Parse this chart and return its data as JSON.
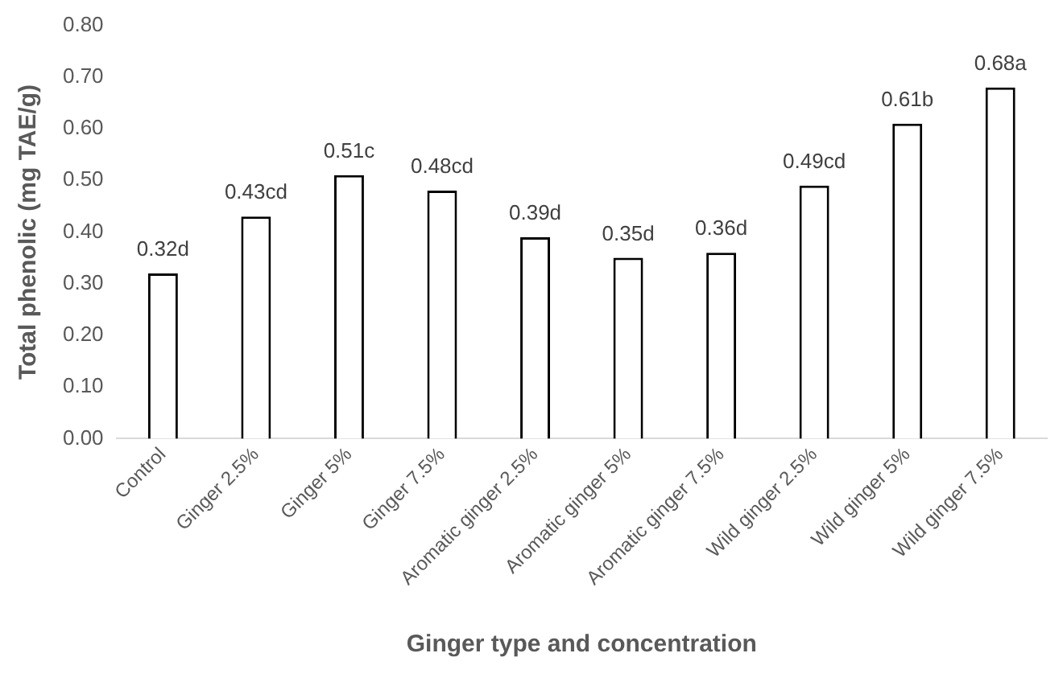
{
  "chart_data": {
    "type": "bar",
    "xlabel": "Ginger type and concentration",
    "ylabel": "Total phenolic (mg TAE/g)",
    "categories": [
      "Control",
      "Ginger 2.5%",
      "Ginger 5%",
      "Ginger 7.5%",
      "Aromatic ginger 2.5%",
      "Aromatic ginger 5%",
      "Aromatic ginger 7.5%",
      "Wild ginger 2.5%",
      "Wild ginger 5%",
      "Wild ginger 7.5%"
    ],
    "values": [
      0.32,
      0.43,
      0.51,
      0.48,
      0.39,
      0.35,
      0.36,
      0.49,
      0.61,
      0.68
    ],
    "value_labels": [
      "0.32d",
      "0.43cd",
      "0.51c",
      "0.48cd",
      "0.39d",
      "0.35d",
      "0.36d",
      "0.49cd",
      "0.61b",
      "0.68a"
    ],
    "color": "#ffffff",
    "ylim": [
      0,
      0.8
    ],
    "yticks": [
      {
        "value": 0,
        "label": "0.00"
      },
      {
        "value": 0.1,
        "label": "0.10"
      },
      {
        "value": 0.2,
        "label": "0.20"
      },
      {
        "value": 0.3,
        "label": "0.30"
      },
      {
        "value": 0.4,
        "label": "0.40"
      },
      {
        "value": 0.5,
        "label": "0.50"
      },
      {
        "value": 0.6,
        "label": "0.60"
      },
      {
        "value": 0.7,
        "label": "0.70"
      },
      {
        "value": 0.8,
        "label": "0.80"
      }
    ],
    "grid": false,
    "legend": false
  }
}
